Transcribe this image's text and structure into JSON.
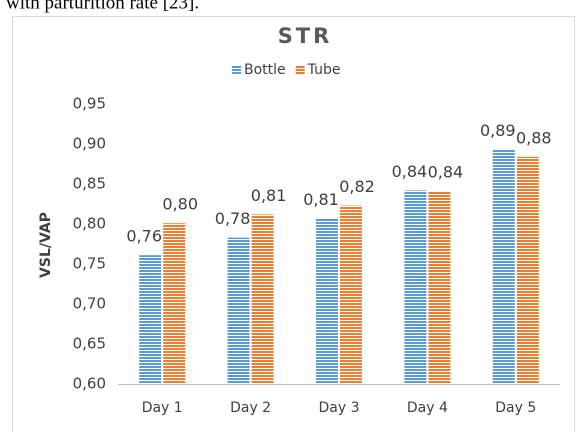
{
  "caption": "with parturition rate [23].",
  "chart_data": {
    "type": "bar",
    "title": "STR",
    "y_label": "VSL/VAP",
    "categories": [
      "Day 1",
      "Day 2",
      "Day 3",
      "Day 4",
      "Day 5"
    ],
    "series": [
      {
        "name": "Bottle",
        "color": "#5b9bd5",
        "values": [
          0.761,
          0.783,
          0.807,
          0.842,
          0.893
        ],
        "value_labels": [
          "0,76",
          "0,78",
          "0,81",
          "0,84",
          "0,89"
        ]
      },
      {
        "name": "Tube",
        "color": "#ed7d31",
        "values": [
          0.801,
          0.812,
          0.823,
          0.841,
          0.884
        ],
        "value_labels": [
          "0,80",
          "0,81",
          "0,82",
          "0,84",
          "0,88"
        ]
      }
    ],
    "ylim": [
      0.6,
      0.95
    ],
    "yticks": [
      {
        "value": 0.6,
        "label": "0,60"
      },
      {
        "value": 0.65,
        "label": "0,65"
      },
      {
        "value": 0.7,
        "label": "0,70"
      },
      {
        "value": 0.75,
        "label": "0,75"
      },
      {
        "value": 0.8,
        "label": "0,80"
      },
      {
        "value": 0.85,
        "label": "0,85"
      },
      {
        "value": 0.9,
        "label": "0,90"
      },
      {
        "value": 0.95,
        "label": "0,95"
      }
    ],
    "grid": false,
    "legend": "top"
  }
}
